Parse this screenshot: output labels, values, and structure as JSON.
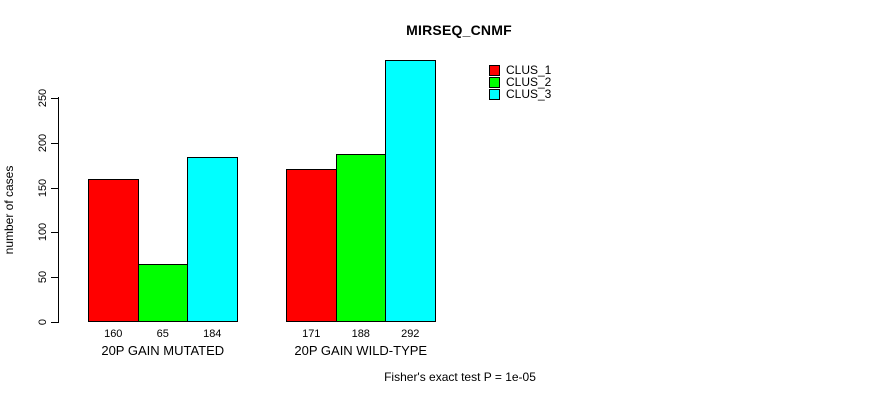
{
  "chart_data": {
    "type": "bar",
    "title": "MIRSEQ_CNMF",
    "ylabel": "number of cases",
    "xlabel": "",
    "categories": [
      "20P GAIN MUTATED",
      "20P GAIN WILD-TYPE"
    ],
    "series": [
      {
        "name": "CLUS_1",
        "color": "#ff0000",
        "values": [
          160,
          171
        ]
      },
      {
        "name": "CLUS_2",
        "color": "#00ff00",
        "values": [
          65,
          188
        ]
      },
      {
        "name": "CLUS_3",
        "color": "#00ffff",
        "values": [
          184,
          292
        ]
      }
    ],
    "bar_value_labels": [
      [
        "160",
        "65",
        "184"
      ],
      [
        "171",
        "188",
        "292"
      ]
    ],
    "yticks": [
      0,
      50,
      100,
      150,
      200,
      250
    ],
    "ylim": [
      0,
      250
    ],
    "grid": false,
    "legend_position": "top-right",
    "legend_border": false,
    "bar_border_color": "#000000",
    "background_color": "#ffffff",
    "annotation": "Fisher's exact test P = 1e-05"
  }
}
